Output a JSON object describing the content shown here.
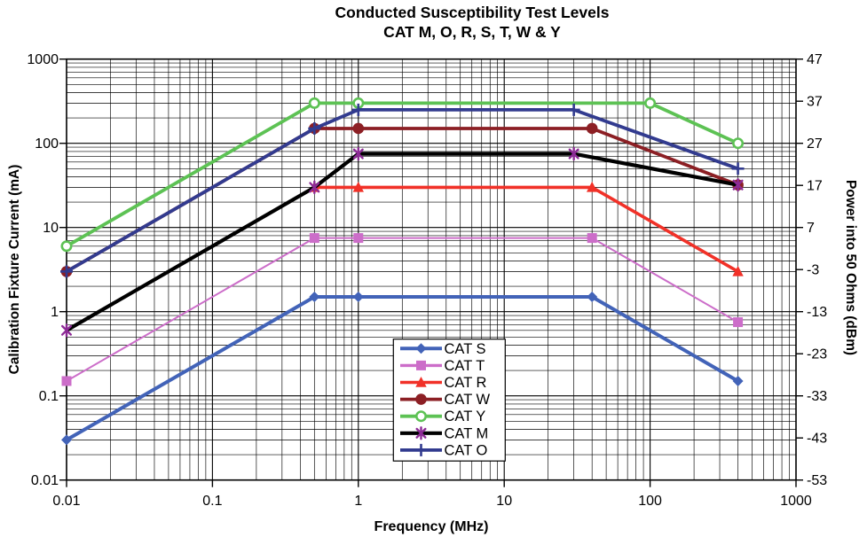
{
  "chart_data": {
    "type": "line",
    "title": "Conducted Susceptibility Test Levels",
    "subtitle": "CAT M, O, R, S, T, W & Y",
    "xlabel": "Frequency (MHz)",
    "ylabel_left": "Calibration Fixture Current (mA)",
    "ylabel_right": "Power into 50 Ohms (dBm)",
    "x_scale": "log",
    "y_scale": "log",
    "xlim": [
      0.01,
      1000
    ],
    "ylim_left": [
      0.01,
      1000
    ],
    "ylim_right": [
      -53,
      47
    ],
    "x_tick_labels": [
      "0.01",
      "0.1",
      "1",
      "10",
      "100",
      "1000"
    ],
    "y_tick_labels_left": [
      "1000",
      "100",
      "10",
      "1",
      "0.1",
      "0.01"
    ],
    "y_tick_labels_right": [
      "47",
      "37",
      "27",
      "17",
      "7",
      "-3",
      "-13",
      "-23",
      "-33",
      "-43",
      "-53"
    ],
    "grid": "major and minor log gridlines on both axes",
    "legend_position": "inside, lower center",
    "series": [
      {
        "name": "CAT S",
        "color": "#4263b8",
        "marker": "diamond",
        "line_width": 4.0,
        "points": [
          [
            0.01,
            0.03
          ],
          [
            0.5,
            1.5
          ],
          [
            1,
            1.5
          ],
          [
            40,
            1.5
          ],
          [
            400,
            0.15
          ]
        ]
      },
      {
        "name": "CAT T",
        "color": "#cc6dc9",
        "marker": "square",
        "line_width": 2.0,
        "points": [
          [
            0.01,
            0.15
          ],
          [
            0.5,
            7.5
          ],
          [
            1,
            7.5
          ],
          [
            40,
            7.5
          ],
          [
            400,
            0.75
          ]
        ]
      },
      {
        "name": "CAT R",
        "color": "#f13128",
        "marker": "triangle",
        "line_width": 3.6,
        "points": [
          [
            0.5,
            30
          ],
          [
            1,
            30
          ],
          [
            40,
            30
          ],
          [
            400,
            3
          ]
        ]
      },
      {
        "name": "CAT W",
        "color": "#8c1f24",
        "marker": "circle",
        "line_width": 3.8,
        "points": [
          [
            0.01,
            3
          ],
          [
            0.5,
            150
          ],
          [
            1,
            150
          ],
          [
            40,
            150
          ],
          [
            400,
            32
          ]
        ]
      },
      {
        "name": "CAT Y",
        "color": "#5dc254",
        "marker": "circle-open",
        "line_width": 3.8,
        "points": [
          [
            0.01,
            6
          ],
          [
            0.5,
            300
          ],
          [
            1,
            300
          ],
          [
            100,
            300
          ],
          [
            400,
            100
          ]
        ]
      },
      {
        "name": "CAT M",
        "color": "#000000",
        "marker": "asterisk",
        "marker_color": "#8d2b96",
        "line_width": 4.2,
        "points": [
          [
            0.01,
            0.6
          ],
          [
            0.5,
            30
          ],
          [
            1,
            75
          ],
          [
            30,
            75
          ],
          [
            400,
            32
          ]
        ]
      },
      {
        "name": "CAT O",
        "color": "#323b8f",
        "marker": "plus",
        "line_width": 3.8,
        "points": [
          [
            0.01,
            3
          ],
          [
            0.5,
            150
          ],
          [
            1,
            250
          ],
          [
            30,
            250
          ],
          [
            400,
            50
          ]
        ]
      }
    ]
  }
}
